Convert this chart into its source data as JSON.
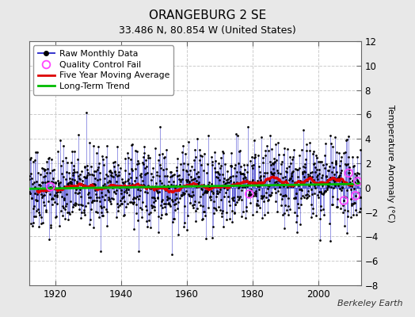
{
  "title": "ORANGEBURG 2 SE",
  "subtitle": "33.486 N, 80.854 W (United States)",
  "ylabel": "Temperature Anomaly (°C)",
  "credit": "Berkeley Earth",
  "xlim": [
    1912,
    2013
  ],
  "ylim": [
    -8,
    12
  ],
  "yticks": [
    -8,
    -6,
    -4,
    -2,
    0,
    2,
    4,
    6,
    8,
    10,
    12
  ],
  "xticks": [
    1920,
    1940,
    1960,
    1980,
    2000
  ],
  "year_start": 1912,
  "year_end": 2012,
  "bg_color": "#e8e8e8",
  "plot_bg_color": "#ffffff",
  "grid_color": "#cccccc",
  "raw_line_color": "#3333cc",
  "raw_line_alpha": 0.7,
  "raw_dot_color": "#000000",
  "raw_dot_size": 4,
  "qc_fail_color": "#ff44ff",
  "moving_avg_color": "#dd0000",
  "trend_color": "#00bb00",
  "trend_slope": 0.004,
  "trend_intercept": 0.1,
  "seed": 42
}
